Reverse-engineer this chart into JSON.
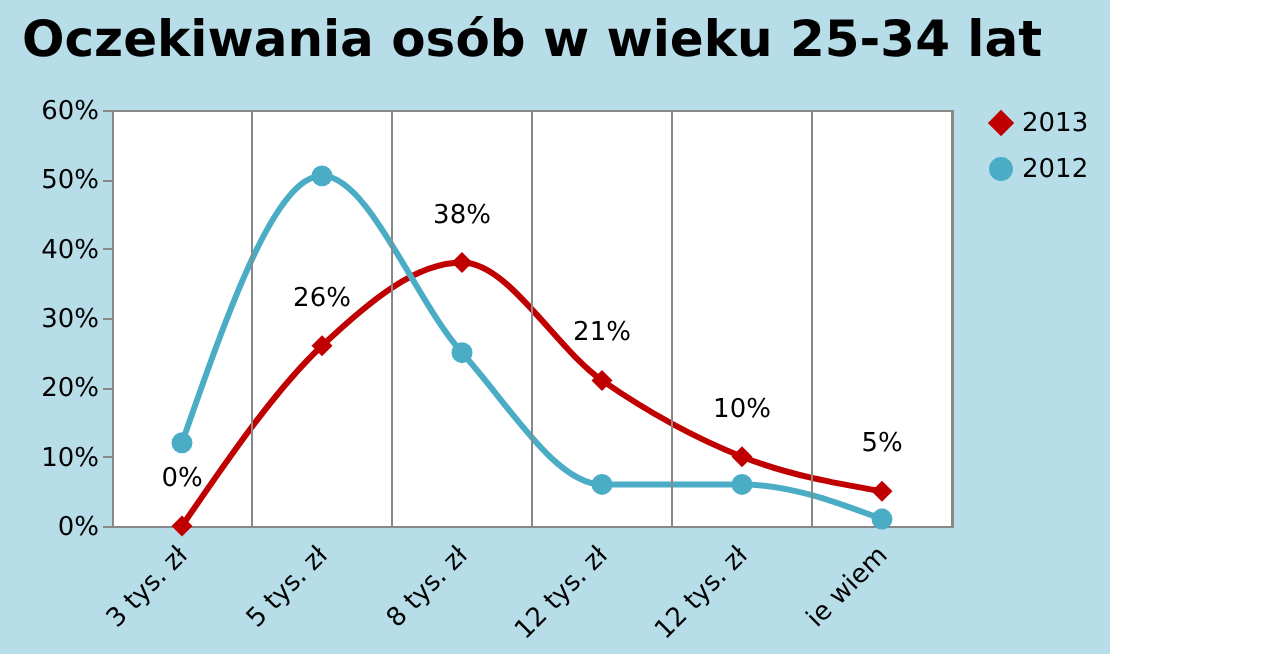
{
  "chart_data": {
    "type": "line",
    "title": "Oczekiwania osób w wieku 25-34 lat",
    "categories": [
      "3 tys. zł",
      "5 tys. zł",
      "8 tys. zł",
      "12 tys. zł",
      "12 tys. zł",
      "ie wiem"
    ],
    "series": [
      {
        "name": "2013",
        "color": "#c00000",
        "marker": "diamond",
        "values": [
          0,
          26,
          38,
          21,
          10,
          5
        ],
        "value_labels": [
          "0%",
          "26%",
          "38%",
          "21%",
          "10%",
          "5%"
        ]
      },
      {
        "name": "2012",
        "color": "#4bacc6",
        "marker": "circle",
        "values": [
          12,
          50.5,
          25,
          6,
          6,
          1
        ]
      }
    ],
    "ylim": [
      0,
      60
    ],
    "yticks": [
      {
        "value": 0,
        "label": "0%"
      },
      {
        "value": 10,
        "label": "10%"
      },
      {
        "value": 20,
        "label": "20%"
      },
      {
        "value": 30,
        "label": "30%"
      },
      {
        "value": 40,
        "label": "40%"
      },
      {
        "value": 50,
        "label": "50%"
      },
      {
        "value": 60,
        "label": "60%"
      }
    ],
    "grid": "x",
    "legend": "right",
    "line_style": "solid"
  }
}
